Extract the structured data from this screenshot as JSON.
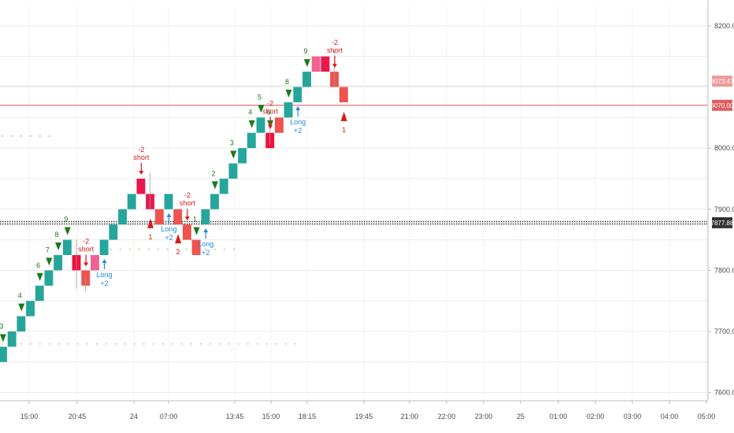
{
  "chart_data": {
    "type": "renko",
    "title": "",
    "xlabel": "",
    "ylabel": "",
    "ylim": [
      7588,
      8232
    ],
    "brick_size": 25,
    "y_ticks": [
      {
        "value": 7600,
        "label": "7600.00"
      },
      {
        "value": 7700,
        "label": "7700.00"
      },
      {
        "value": 7800,
        "label": "7800.00"
      },
      {
        "value": 7900,
        "label": "7900.00"
      },
      {
        "value": 8000,
        "label": "8000.00"
      },
      {
        "value": 8200,
        "label": "8200.00"
      }
    ],
    "x_ticks": [
      "15:00",
      "20:45",
      "24",
      "07:00",
      "13:45",
      "15:00",
      "18:15",
      "19:45",
      "21:00",
      "22:00",
      "23:00",
      "25",
      "01:00",
      "02:00",
      "03:00",
      "04:00",
      "05:00"
    ],
    "bricks": [
      {
        "c": 0,
        "y0": 7650,
        "y1": 7675,
        "dir": "up"
      },
      {
        "c": 1,
        "y0": 7675,
        "y1": 7700,
        "dir": "up"
      },
      {
        "c": 2,
        "y0": 7700,
        "y1": 7725,
        "dir": "up"
      },
      {
        "c": 3,
        "y0": 7725,
        "y1": 7750,
        "dir": "up"
      },
      {
        "c": 4,
        "y0": 7750,
        "y1": 7775,
        "dir": "up"
      },
      {
        "c": 5,
        "y0": 7775,
        "y1": 7800,
        "dir": "up"
      },
      {
        "c": 6,
        "y0": 7800,
        "y1": 7825,
        "dir": "up"
      },
      {
        "c": 7,
        "y0": 7825,
        "y1": 7850,
        "dir": "up"
      },
      {
        "c": 8,
        "y0": 7825,
        "y1": 7800,
        "dir": "down"
      },
      {
        "c": 9,
        "y0": 7800,
        "y1": 7775,
        "dir": "down"
      },
      {
        "c": 10,
        "y0": 7800,
        "y1": 7825,
        "dir": "up"
      },
      {
        "c": 11,
        "y0": 7825,
        "y1": 7850,
        "dir": "up"
      },
      {
        "c": 12,
        "y0": 7850,
        "y1": 7875,
        "dir": "up"
      },
      {
        "c": 13,
        "y0": 7875,
        "y1": 7900,
        "dir": "up"
      },
      {
        "c": 14,
        "y0": 7900,
        "y1": 7925,
        "dir": "up"
      },
      {
        "c": 15,
        "y0": 7925,
        "y1": 7950,
        "dir": "up"
      },
      {
        "c": 16,
        "y0": 7925,
        "y1": 7900,
        "dir": "down"
      },
      {
        "c": 17,
        "y0": 7900,
        "y1": 7875,
        "dir": "down"
      },
      {
        "c": 18,
        "y0": 7900,
        "y1": 7925,
        "dir": "up"
      },
      {
        "c": 19,
        "y0": 7900,
        "y1": 7875,
        "dir": "down"
      },
      {
        "c": 20,
        "y0": 7875,
        "y1": 7850,
        "dir": "down"
      },
      {
        "c": 21,
        "y0": 7850,
        "y1": 7825,
        "dir": "down"
      },
      {
        "c": 22,
        "y0": 7875,
        "y1": 7900,
        "dir": "up"
      },
      {
        "c": 23,
        "y0": 7900,
        "y1": 7925,
        "dir": "up"
      },
      {
        "c": 24,
        "y0": 7925,
        "y1": 7950,
        "dir": "up"
      },
      {
        "c": 25,
        "y0": 7950,
        "y1": 7975,
        "dir": "up"
      },
      {
        "c": 26,
        "y0": 7975,
        "y1": 8000,
        "dir": "up"
      },
      {
        "c": 27,
        "y0": 8000,
        "y1": 8025,
        "dir": "up"
      },
      {
        "c": 28,
        "y0": 8025,
        "y1": 8050,
        "dir": "up"
      },
      {
        "c": 29,
        "y0": 8000,
        "y1": 8025,
        "dir": "down"
      },
      {
        "c": 30,
        "y0": 8025,
        "y1": 8050,
        "dir": "down"
      },
      {
        "c": 31,
        "y0": 8050,
        "y1": 8075,
        "dir": "up"
      },
      {
        "c": 32,
        "y0": 8075,
        "y1": 8100,
        "dir": "up"
      },
      {
        "c": 33,
        "y0": 8100,
        "y1": 8125,
        "dir": "up"
      },
      {
        "c": 34,
        "y0": 8125,
        "y1": 8150,
        "dir": "up"
      },
      {
        "c": 35,
        "y0": 8150,
        "y1": 8125,
        "dir": "down"
      },
      {
        "c": 36,
        "y0": 8125,
        "y1": 8100,
        "dir": "down"
      },
      {
        "c": 37,
        "y0": 8100,
        "y1": 8075,
        "dir": "down"
      }
    ],
    "setup_counts": [
      {
        "c": 0,
        "label": "3"
      },
      {
        "c": 2,
        "label": "4"
      },
      {
        "c": 4,
        "label": "6"
      },
      {
        "c": 5,
        "label": "7"
      },
      {
        "c": 6,
        "label": "8"
      },
      {
        "c": 7,
        "label": "9"
      },
      {
        "c": 21,
        "label": "1"
      },
      {
        "c": 23,
        "label": "2"
      },
      {
        "c": 25,
        "label": "3"
      },
      {
        "c": 27,
        "label": "4"
      },
      {
        "c": 28,
        "label": "5"
      },
      {
        "c": 29,
        "label": "6"
      },
      {
        "c": 31,
        "label": "8"
      },
      {
        "c": 33,
        "label": "9"
      }
    ],
    "signals": [
      {
        "c": 9,
        "type": "short",
        "count": "-2",
        "text": "short"
      },
      {
        "c": 15,
        "type": "short",
        "count": "-2",
        "text": "short"
      },
      {
        "c": 20,
        "type": "short",
        "count": "-2",
        "text": "short"
      },
      {
        "c": 29,
        "type": "short",
        "count": "-2",
        "text": "short"
      },
      {
        "c": 36,
        "type": "short",
        "count": "-2",
        "text": "short"
      },
      {
        "c": 11,
        "type": "long",
        "count": "+2",
        "text": "Long"
      },
      {
        "c": 18,
        "type": "long",
        "count": "+2",
        "text": "Long"
      },
      {
        "c": 22,
        "type": "long",
        "count": "+2",
        "text": "Long"
      },
      {
        "c": 32,
        "type": "long",
        "count": "+2",
        "text": "Long"
      }
    ],
    "down_counts": [
      {
        "c": 16,
        "label": "1"
      },
      {
        "c": 19,
        "label": "2"
      },
      {
        "c": 37,
        "label": "1"
      }
    ],
    "levels": {
      "resistance": 8070,
      "last_price": 7877.88,
      "upper_dotted": 8020,
      "mid_dotted": 7835,
      "lower_dotted": 7680
    },
    "price_labels": [
      {
        "value": 8073.47,
        "label": "8073.47",
        "color": "#ef9a9a"
      },
      {
        "value": 8070,
        "label": "8070.00",
        "color": "#e35d5d"
      },
      {
        "value": 7877.88,
        "label": "7877.88",
        "color": "#333333"
      }
    ],
    "colors": {
      "up": "#26a69a",
      "down": "#ef5350",
      "up_signal": "#f06292",
      "down_strong": "#e8174e",
      "buy_count": "#1b7a1b",
      "sell": "#d81b1b",
      "long": "#1e88e5"
    }
  }
}
